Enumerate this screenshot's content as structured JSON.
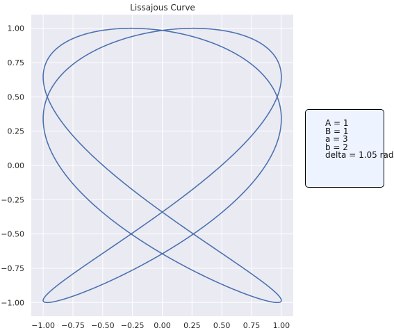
{
  "chart_data": {
    "type": "line",
    "title": "Lissajous Curve",
    "xlabel": "",
    "ylabel": "",
    "xlim": [
      -1.1,
      1.1
    ],
    "ylim": [
      -1.1,
      1.1
    ],
    "xticks": [
      -1.0,
      -0.75,
      -0.5,
      -0.25,
      0.0,
      0.25,
      0.5,
      0.75,
      1.0
    ],
    "yticks": [
      -1.0,
      -0.75,
      -0.5,
      -0.25,
      0.0,
      0.25,
      0.5,
      0.75,
      1.0
    ],
    "xtick_labels": [
      "−1.00",
      "−0.75",
      "−0.50",
      "−0.25",
      "0.00",
      "0.25",
      "0.50",
      "0.75",
      "1.00"
    ],
    "ytick_labels": [
      "−1.00",
      "−0.75",
      "−0.50",
      "−0.25",
      "0.00",
      "0.25",
      "0.50",
      "0.75",
      "1.00"
    ],
    "grid": true,
    "series": [
      {
        "A": 1,
        "B": 1,
        "a": 3,
        "b": 2,
        "delta": 1.05,
        "color": "#4c72b0"
      }
    ],
    "parameters_box": {
      "lines": [
        "A = 1",
        "B = 1",
        "a = 3",
        "b = 2",
        "delta = 1.05 rad"
      ],
      "placement": "right"
    }
  },
  "colors": {
    "plot_background": "#eaeaf2",
    "grid": "#ffffff",
    "line": "#4c72b0",
    "box_background": "#eef4ff"
  }
}
